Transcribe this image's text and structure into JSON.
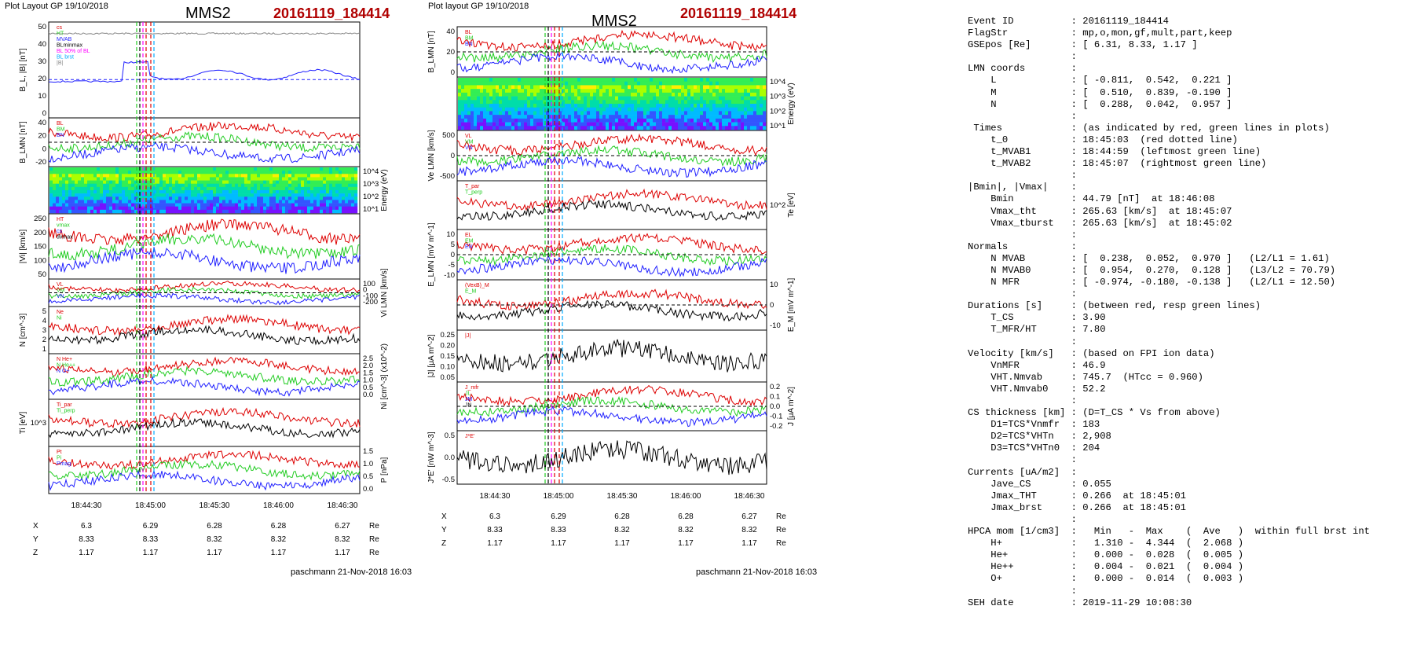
{
  "left_panel": {
    "header_left": "Plot Layout GP 19/10/2018",
    "spacecraft": "MMS2",
    "event_id": "20161119_184414",
    "footer": "paschmann 21-Nov-2018 16:03",
    "time_ticks": [
      "18:44:30",
      "18:45:00",
      "18:45:30",
      "18:46:00",
      "18:46:30"
    ],
    "pos_rows": [
      {
        "axis": "X",
        "values": [
          "6.3",
          "6.29",
          "6.28",
          "6.28",
          "6.27"
        ],
        "unit": "Re"
      },
      {
        "axis": "Y",
        "values": [
          "8.33",
          "8.33",
          "8.32",
          "8.32",
          "8.32"
        ],
        "unit": "Re"
      },
      {
        "axis": "Z",
        "values": [
          "1.17",
          "1.17",
          "1.17",
          "1.17",
          "1.17"
        ],
        "unit": "Re"
      }
    ],
    "panels": [
      {
        "ylabel": "B_L, |B| [nT]",
        "ylabel_side": "left",
        "ticks": [
          "50",
          "40",
          "30",
          "20",
          "10",
          "0"
        ],
        "legend": [
          "cs",
          "HT",
          "MVAB",
          "BLminmax",
          "BL 50% of BL",
          "BL brst",
          "|B|"
        ]
      },
      {
        "ylabel": "B_LMN [nT]",
        "ylabel_side": "left",
        "ticks": [
          "40",
          "20",
          "0",
          "-20"
        ],
        "legend": [
          "BL",
          "BM",
          "BN"
        ]
      },
      {
        "ylabel": "Energy (eV)",
        "ylabel_side": "right",
        "ticks": [
          "10^4",
          "10^3",
          "10^2",
          "10^1"
        ],
        "legend": []
      },
      {
        "ylabel": "|Vi| [km/s]",
        "ylabel_side": "left",
        "ticks": [
          "250",
          "200",
          "150",
          "100",
          "50"
        ],
        "legend": [
          "HT",
          "vmax",
          "cs",
          "dvmax"
        ]
      },
      {
        "ylabel": "Vi LMN [km/s]",
        "ylabel_side": "right",
        "ticks": [
          "100",
          "0",
          "-100",
          "-200"
        ],
        "legend": [
          "VL",
          "VM",
          "VN"
        ]
      },
      {
        "ylabel": "N [cm^-3]",
        "ylabel_side": "left",
        "ticks": [
          "5",
          "4",
          "3",
          "2",
          "1"
        ],
        "legend": [
          "Ne",
          "Ni"
        ]
      },
      {
        "ylabel": "Ni [cm^-3] (x10^-2)",
        "ylabel_side": "right",
        "ticks": [
          "2.5",
          "2.0",
          "1.5",
          "1.0",
          "0.5",
          "0.0"
        ],
        "legend": [
          "N He+",
          "N He++",
          "N O+"
        ]
      },
      {
        "ylabel": "Ti [eV]",
        "ylabel_side": "left",
        "ticks": [
          "10^3"
        ],
        "legend": [
          "Ti_par",
          "Ti_perp"
        ]
      },
      {
        "ylabel": "P [nPa]",
        "ylabel_side": "right",
        "ticks": [
          "1.5",
          "1.0",
          "0.5",
          "0.0"
        ],
        "legend": [
          "Pt",
          "Pi",
          "Pmag"
        ]
      }
    ]
  },
  "right_panel": {
    "header_left": "Plot layout GP 19/10/2018",
    "spacecraft": "MMS2",
    "event_id": "20161119_184414",
    "footer": "paschmann 21-Nov-2018 16:03",
    "time_ticks": [
      "18:44:30",
      "18:45:00",
      "18:45:30",
      "18:46:00",
      "18:46:30"
    ],
    "pos_rows": [
      {
        "axis": "X",
        "values": [
          "6.3",
          "6.29",
          "6.28",
          "6.28",
          "6.27"
        ],
        "unit": "Re"
      },
      {
        "axis": "Y",
        "values": [
          "8.33",
          "8.33",
          "8.32",
          "8.32",
          "8.32"
        ],
        "unit": "Re"
      },
      {
        "axis": "Z",
        "values": [
          "1.17",
          "1.17",
          "1.17",
          "1.17",
          "1.17"
        ],
        "unit": "Re"
      }
    ],
    "panels": [
      {
        "ylabel": "B_LMN [nT]",
        "ylabel_side": "left",
        "ticks": [
          "40",
          "20",
          "0"
        ],
        "legend": [
          "BL",
          "BM",
          "BN"
        ]
      },
      {
        "ylabel": "Energy (eV)",
        "ylabel_side": "right",
        "ticks": [
          "10^4",
          "10^3",
          "10^2",
          "10^1"
        ],
        "legend": []
      },
      {
        "ylabel": "Ve LMN [km/s]",
        "ylabel_side": "left",
        "ticks": [
          "500",
          "0",
          "-500"
        ],
        "legend": [
          "VL",
          "VM",
          "VN"
        ]
      },
      {
        "ylabel": "Te [eV]",
        "ylabel_side": "right",
        "ticks": [
          "10^2"
        ],
        "legend": [
          "T_par",
          "T_perp"
        ]
      },
      {
        "ylabel": "E_LMN [mV m^-1]",
        "ylabel_side": "left",
        "ticks": [
          "10",
          "5",
          "0",
          "-5",
          "-10"
        ],
        "legend": [
          "EL",
          "EM",
          "EN"
        ]
      },
      {
        "ylabel": "E_M [mV m^-1]",
        "ylabel_side": "right",
        "ticks": [
          "10",
          "0",
          "-10"
        ],
        "legend": [
          "(VexB)_M",
          "E_M"
        ]
      },
      {
        "ylabel": "|J| [μA m^-2]",
        "ylabel_side": "left",
        "ticks": [
          "0.25",
          "0.20",
          "0.15",
          "0.10",
          "0.05"
        ],
        "legend": [
          "|J|"
        ]
      },
      {
        "ylabel": "J [μA m^-2]",
        "ylabel_side": "right",
        "ticks": [
          "0.2",
          "0.1",
          "0.0",
          "-0.1",
          "-0.2"
        ],
        "legend": [
          "J_mfr",
          "JL",
          "JM",
          "JN"
        ]
      },
      {
        "ylabel": "J*E' [nW m^-3]",
        "ylabel_side": "left",
        "ticks": [
          "0.5",
          "0.0",
          "-0.5"
        ],
        "legend": [
          "J*E'"
        ]
      }
    ]
  },
  "summary": [
    {
      "label": "Event ID",
      "value": "20161119_184414",
      "indent": 0
    },
    {
      "label": "FlagStr",
      "value": "mp,o,mon,gf,mult,part,keep",
      "indent": 0
    },
    {
      "label": "GSEpos [Re]",
      "value": "[ 6.31, 8.33, 1.17 ]",
      "indent": 0
    },
    {
      "blank": true
    },
    {
      "label": "LMN coords",
      "value": "",
      "indent": 0
    },
    {
      "label": "L",
      "value": "[ -0.811,  0.542,  0.221 ]",
      "indent": 2
    },
    {
      "label": "M",
      "value": "[  0.510,  0.839, -0.190 ]",
      "indent": 2
    },
    {
      "label": "N",
      "value": "[  0.288,  0.042,  0.957 ]",
      "indent": 2
    },
    {
      "blank": true
    },
    {
      "label": "Times",
      "value": "(as indicated by red, green lines in plots)",
      "indent": 1
    },
    {
      "label": "t_0",
      "value": "18:45:03  (red dotted line)",
      "indent": 2
    },
    {
      "label": "t_MVAB1",
      "value": "18:44:59  (leftmost green line)",
      "indent": 2
    },
    {
      "label": "t_MVAB2",
      "value": "18:45:07  (rightmost green line)",
      "indent": 2
    },
    {
      "blank": true
    },
    {
      "label": "|Bmin|, |Vmax|",
      "value": "",
      "indent": 0
    },
    {
      "label": "Bmin",
      "value": "44.79 [nT]  at 18:46:08",
      "indent": 2
    },
    {
      "label": "Vmax_tht",
      "value": "265.63 [km/s]  at 18:45:07",
      "indent": 2
    },
    {
      "label": "Vmax_tburst",
      "value": "265.63 [km/s]  at 18:45:02",
      "indent": 2
    },
    {
      "blank": true
    },
    {
      "label": "Normals",
      "value": "",
      "indent": 0
    },
    {
      "label": "N MVAB",
      "value": "[  0.238,  0.052,  0.970 ]   (L2/L1 = 1.61)",
      "indent": 2
    },
    {
      "label": "N MVAB0",
      "value": "[  0.954,  0.270,  0.128 ]   (L3/L2 = 70.79)",
      "indent": 2
    },
    {
      "label": "N MFR",
      "value": "[ -0.974, -0.180, -0.138 ]   (L2/L1 = 12.50)",
      "indent": 2
    },
    {
      "blank": true
    },
    {
      "label": "Durations [s]",
      "value": "(between red, resp green lines)",
      "indent": 0
    },
    {
      "label": "T_CS",
      "value": "3.90",
      "indent": 2
    },
    {
      "label": "T_MFR/HT",
      "value": "7.80",
      "indent": 2
    },
    {
      "blank": true
    },
    {
      "label": "Velocity [km/s]",
      "value": "(based on FPI ion data)",
      "indent": 0
    },
    {
      "label": "VnMFR",
      "value": "46.9",
      "indent": 2
    },
    {
      "label": "VHT.Nmvab",
      "value": "745.7  (HTcc = 0.960)",
      "indent": 2
    },
    {
      "label": "VHT.Nmvab0",
      "value": "52.2",
      "indent": 2
    },
    {
      "blank": true
    },
    {
      "label": "CS thickness [km]",
      "value": "(D=T_CS * Vs from above)",
      "indent": 0
    },
    {
      "label": "D1=TCS*Vnmfr",
      "value": "183",
      "indent": 2
    },
    {
      "label": "D2=TCS*VHTn",
      "value": "2,908",
      "indent": 2
    },
    {
      "label": "D3=TCS*VHTn0",
      "value": "204",
      "indent": 2
    },
    {
      "blank": true
    },
    {
      "label": "Currents [uA/m2]",
      "value": "",
      "indent": 0
    },
    {
      "label": "Jave_CS",
      "value": "0.055",
      "indent": 2
    },
    {
      "label": "Jmax_THT",
      "value": "0.266  at 18:45:01",
      "indent": 2
    },
    {
      "label": "Jmax_brst",
      "value": "0.266  at 18:45:01",
      "indent": 2
    },
    {
      "blank": true
    },
    {
      "label": "HPCA mom [1/cm3]",
      "value": "  Min   -  Max    (  Ave   )  within full brst int",
      "indent": 0
    },
    {
      "label": "H+",
      "value": "  1.310 -  4.344  (  2.068 )",
      "indent": 2
    },
    {
      "label": "He+",
      "value": "  0.000 -  0.028  (  0.005 )",
      "indent": 2
    },
    {
      "label": "He++",
      "value": "  0.004 -  0.021  (  0.004 )",
      "indent": 2
    },
    {
      "label": "O+",
      "value": "  0.000 -  0.014  (  0.003 )",
      "indent": 2
    },
    {
      "blank": true
    },
    {
      "label": "SEH date",
      "value": "2019-11-29 10:08:30",
      "indent": 0
    }
  ],
  "chart_data": [
    {
      "type": "line",
      "title": "MMS2 20161119_184414 (left figure)",
      "x_ticks": [
        "18:44:30",
        "18:45:00",
        "18:45:30",
        "18:46:00",
        "18:46:30"
      ],
      "panels": 9
    },
    {
      "type": "line",
      "title": "MMS2 20161119_184414 (right figure)",
      "x_ticks": [
        "18:44:30",
        "18:45:00",
        "18:45:30",
        "18:46:00",
        "18:46:30"
      ],
      "panels": 9
    }
  ],
  "colors": {
    "red": "#dd0000",
    "green": "#22cc22",
    "blue": "#1f1fff",
    "black": "#000000",
    "magenta": "#ff00ff",
    "cyan": "#00aaff",
    "gray": "#888888",
    "title_red": "#b00000"
  }
}
